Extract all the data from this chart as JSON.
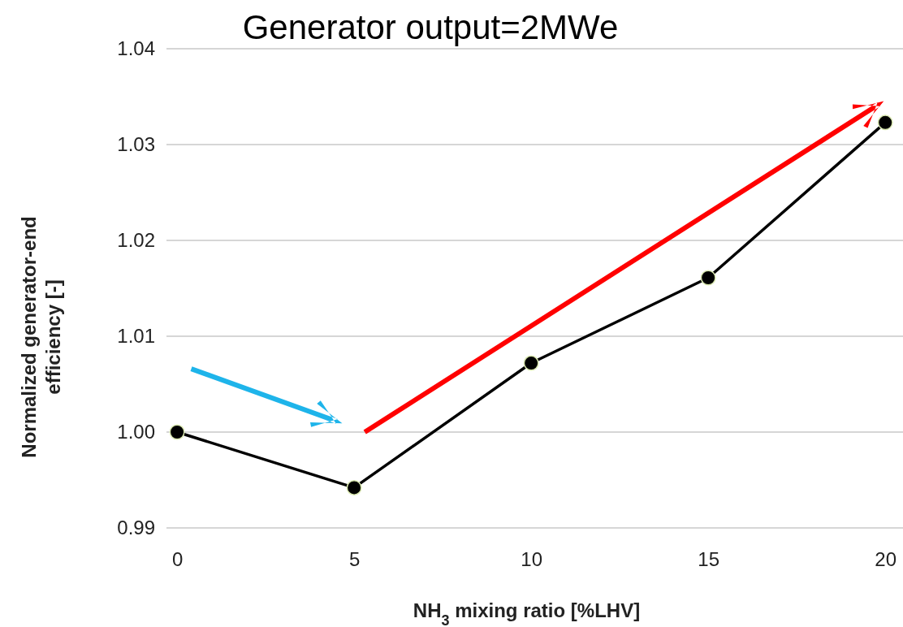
{
  "chart_data": {
    "type": "line",
    "title": "Generator output=2MWe",
    "xlabel": "NH$_{3}$ mixing ratio [%LHV]",
    "ylabel": "Normalized generator-end efficiency [-]",
    "x": [
      0,
      5,
      10,
      15,
      20
    ],
    "series": [
      {
        "color": "#000000",
        "values": [
          1.0,
          0.9942,
          1.0072,
          1.0161,
          1.0323
        ]
      }
    ],
    "xlim": [
      -0.3,
      20.5
    ],
    "xticks": [
      0,
      5,
      10,
      15,
      20
    ],
    "ylim": [
      0.99,
      1.04
    ],
    "yticks": [
      {
        "value": 0.99,
        "label": "0.99"
      },
      {
        "value": 1.0,
        "label": "1.00"
      },
      {
        "value": 1.01,
        "label": "1.01"
      },
      {
        "value": 1.02,
        "label": "1.02"
      },
      {
        "value": 1.03,
        "label": "1.03"
      },
      {
        "value": 1.04,
        "label": "1.04"
      }
    ],
    "grid": "y",
    "marker": "circle",
    "line_style": "solid"
  }
}
